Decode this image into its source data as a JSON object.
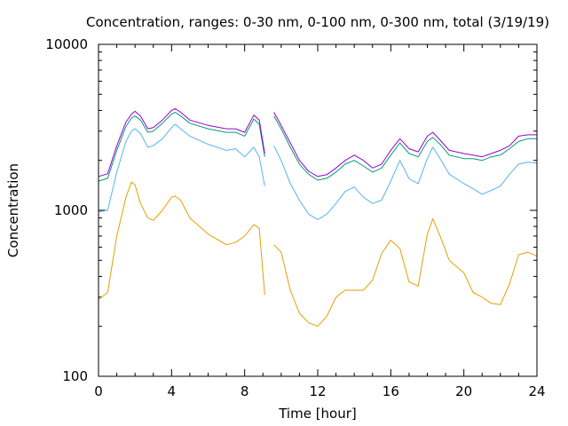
{
  "chart_data": {
    "type": "line",
    "title": "Concentration, ranges: 0-30 nm, 0-100 nm, 0-300 nm, total (3/19/19)",
    "xlabel": "Time [hour]",
    "ylabel": "Concentration",
    "xlim": [
      0,
      24
    ],
    "ylim": [
      100,
      10000
    ],
    "yscale": "log",
    "grid": false,
    "legend": "none",
    "x_ticks": [
      "0",
      "4",
      "8",
      "12",
      "16",
      "20",
      "24"
    ],
    "y_ticks": [
      "100",
      "1000",
      "10000"
    ],
    "x": [
      0,
      0.5,
      1,
      1.5,
      1.8,
      2,
      2.3,
      2.7,
      3,
      3.5,
      4,
      4.2,
      4.5,
      5,
      6,
      7,
      7.5,
      8,
      8.5,
      8.8,
      9.1,
      9.3,
      9.6,
      10,
      10.5,
      11,
      11.5,
      12,
      12.5,
      13,
      13.5,
      14,
      14.5,
      15,
      15.5,
      16,
      16.5,
      17,
      17.5,
      18,
      18.3,
      18.7,
      19.2,
      20,
      20.5,
      21,
      21.5,
      22,
      22.5,
      23,
      23.5,
      24
    ],
    "series": [
      {
        "color": "#e69f00",
        "values": [
          290,
          320,
          700,
          1200,
          1480,
          1420,
          1100,
          900,
          870,
          1000,
          1200,
          1220,
          1150,
          900,
          720,
          620,
          640,
          700,
          820,
          780,
          310,
          null,
          620,
          560,
          330,
          240,
          210,
          200,
          230,
          300,
          330,
          330,
          330,
          380,
          550,
          660,
          590,
          370,
          350,
          720,
          890,
          700,
          500,
          420,
          320,
          300,
          275,
          270,
          360,
          540,
          560,
          530
        ]
      },
      {
        "color": "#56b4e9",
        "values": [
          980,
          1000,
          1700,
          2600,
          3000,
          3100,
          2900,
          2400,
          2450,
          2700,
          3150,
          3300,
          3100,
          2800,
          2500,
          2300,
          2350,
          2100,
          2400,
          2100,
          1400,
          null,
          2450,
          2000,
          1450,
          1150,
          950,
          880,
          950,
          1100,
          1300,
          1380,
          1200,
          1100,
          1150,
          1500,
          2000,
          1550,
          1450,
          2050,
          2400,
          2050,
          1650,
          1450,
          1350,
          1250,
          1320,
          1400,
          1650,
          1900,
          1950,
          1930
        ]
      },
      {
        "color": "#009e73",
        "values": [
          1500,
          1560,
          2300,
          3200,
          3600,
          3700,
          3500,
          2950,
          3000,
          3350,
          3800,
          3900,
          3700,
          3350,
          3100,
          2950,
          2950,
          2800,
          3550,
          3300,
          2100,
          null,
          3700,
          3100,
          2400,
          1900,
          1650,
          1520,
          1560,
          1700,
          1900,
          2000,
          1850,
          1700,
          1800,
          2150,
          2550,
          2200,
          2100,
          2600,
          2750,
          2500,
          2150,
          2050,
          2050,
          2000,
          2100,
          2150,
          2350,
          2600,
          2700,
          2700
        ]
      },
      {
        "color": "#9400d3",
        "values": [
          1600,
          1660,
          2450,
          3400,
          3800,
          3950,
          3700,
          3100,
          3150,
          3500,
          4000,
          4100,
          3900,
          3500,
          3250,
          3100,
          3100,
          2950,
          3750,
          3500,
          2200,
          null,
          3900,
          3250,
          2550,
          2000,
          1720,
          1600,
          1640,
          1800,
          2000,
          2150,
          2000,
          1800,
          1900,
          2300,
          2700,
          2350,
          2250,
          2800,
          2950,
          2650,
          2300,
          2200,
          2150,
          2100,
          2200,
          2300,
          2450,
          2800,
          2850,
          2850
        ]
      }
    ]
  }
}
